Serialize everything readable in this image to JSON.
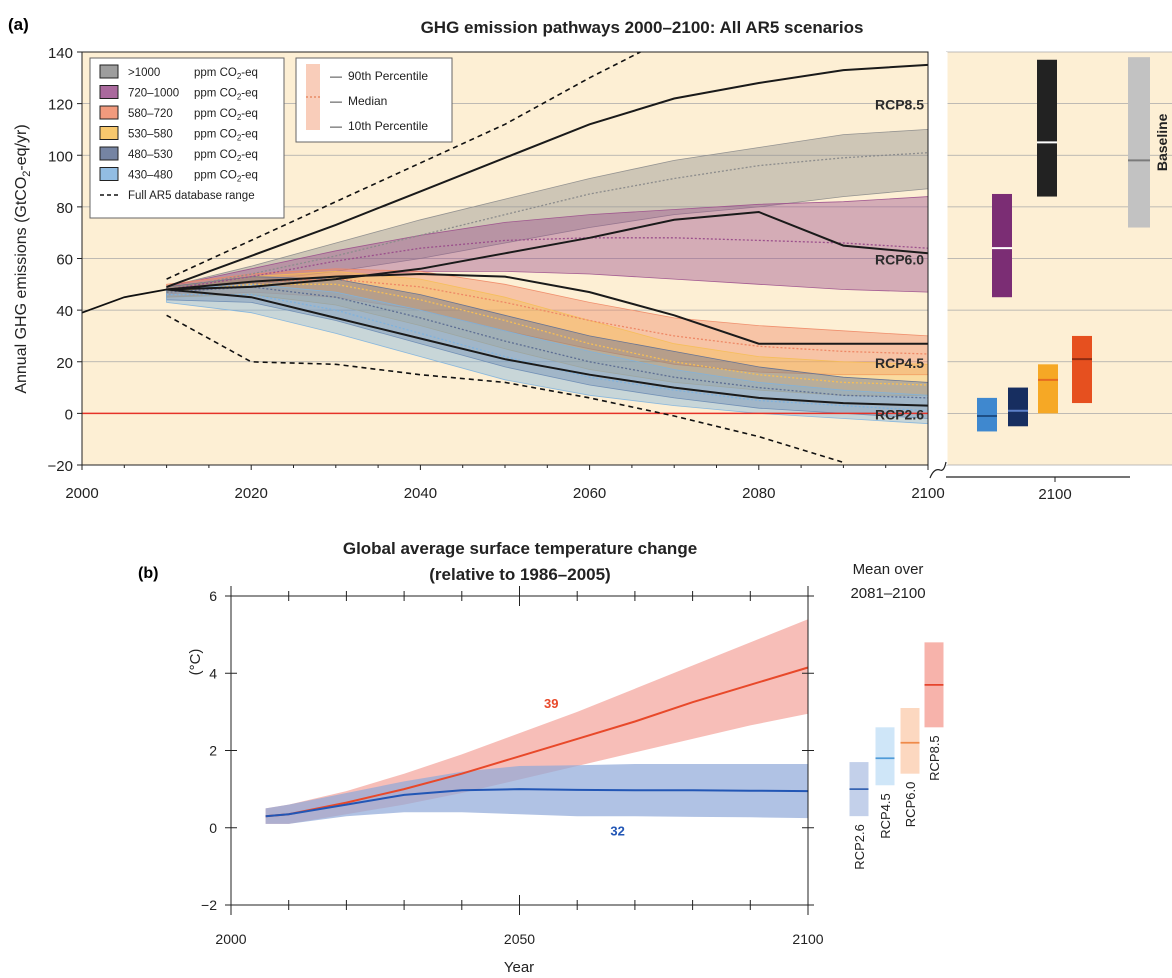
{
  "chart_data": [
    {
      "panel_label": "(a)",
      "type": "area",
      "title": "GHG emission pathways 2000–2100: All AR5 scenarios",
      "ylabel": "Annual GHG emissions (GtCO",
      "ylabel_sub": "2",
      "ylabel_end": "-eq/yr)",
      "xlim": [
        2000,
        2100
      ],
      "ylim": [
        -20,
        140
      ],
      "x_ticks": [
        2000,
        2020,
        2040,
        2060,
        2080,
        2100
      ],
      "y_ticks": [
        -20,
        0,
        20,
        40,
        60,
        80,
        100,
        120,
        140
      ],
      "grid": true,
      "legend_position": "top-left",
      "legend": [
        {
          "range": ">1000",
          "unit": "ppm CO",
          "sub": "2",
          "unit_end": "-eq",
          "color": "#8c8c8c"
        },
        {
          "range": "720–1000",
          "unit": "ppm CO",
          "sub": "2",
          "unit_end": "-eq",
          "color": "#9b4f8c"
        },
        {
          "range": "580–720",
          "unit": "ppm CO",
          "sub": "2",
          "unit_end": "-eq",
          "color": "#ee8866"
        },
        {
          "range": "530–580",
          "unit": "ppm CO",
          "sub": "2",
          "unit_end": "-eq",
          "color": "#f6be55"
        },
        {
          "range": "480–530",
          "unit": "ppm CO",
          "sub": "2",
          "unit_end": "-eq",
          "color": "#5d6e93"
        },
        {
          "range": "430–480",
          "unit": "ppm CO",
          "sub": "2",
          "unit_end": "-eq",
          "color": "#7fb2de"
        },
        {
          "range": "Full AR5 database range",
          "unit": "",
          "sub": "",
          "unit_end": "",
          "color": "#111111",
          "dashed": true
        }
      ],
      "percentile_legend": [
        "90th Percentile",
        "Median",
        "10th Percentile"
      ],
      "rcp_labels": [
        {
          "name": "RCP8.5",
          "y": 120
        },
        {
          "name": "RCP6.0",
          "y": 60
        },
        {
          "name": "RCP4.5",
          "y": 20
        },
        {
          "name": "RCP2.6",
          "y": 0
        }
      ],
      "zero_line_color": "#e63228",
      "background": "#fdefd4",
      "series": [
        {
          "name": ">1000",
          "color": "#8c8c8c",
          "x": [
            2010,
            2020,
            2030,
            2040,
            2050,
            2060,
            2070,
            2080,
            2090,
            2100
          ],
          "p90": [
            49,
            57,
            66,
            75,
            83,
            91,
            98,
            103,
            108,
            110
          ],
          "median": [
            48,
            54,
            61,
            69,
            77,
            85,
            91,
            96,
            99,
            101
          ],
          "p10": [
            47,
            51,
            55,
            60,
            66,
            72,
            77,
            80,
            84,
            87
          ]
        },
        {
          "name": "720–1000",
          "color": "#9b4f8c",
          "x": [
            2010,
            2020,
            2030,
            2040,
            2050,
            2060,
            2070,
            2080,
            2090,
            2100
          ],
          "p90": [
            49,
            56,
            63,
            69,
            74,
            77,
            79,
            81,
            82,
            84
          ],
          "median": [
            48,
            53,
            59,
            64,
            67,
            68,
            68,
            67,
            66,
            64
          ],
          "p10": [
            46,
            50,
            53,
            55,
            55,
            54,
            52,
            50,
            48,
            47
          ]
        },
        {
          "name": "580–720",
          "color": "#ee8866",
          "x": [
            2010,
            2020,
            2030,
            2040,
            2050,
            2060,
            2070,
            2080,
            2090,
            2100
          ],
          "p90": [
            50,
            54,
            56,
            55,
            50,
            43,
            37,
            34,
            32,
            30
          ],
          "median": [
            48,
            51,
            52,
            49,
            43,
            36,
            30,
            26,
            24,
            23
          ],
          "p10": [
            45,
            47,
            45,
            40,
            32,
            25,
            19,
            16,
            15,
            15
          ]
        },
        {
          "name": "530–580",
          "color": "#f6be55",
          "x": [
            2010,
            2020,
            2030,
            2040,
            2050,
            2060,
            2070,
            2080,
            2090,
            2100
          ],
          "p90": [
            49,
            53,
            55,
            52,
            45,
            36,
            27,
            22,
            20,
            19
          ],
          "median": [
            47,
            50,
            50,
            44,
            36,
            27,
            20,
            15,
            12,
            11
          ],
          "p10": [
            45,
            46,
            42,
            34,
            25,
            17,
            12,
            9,
            7,
            7
          ]
        },
        {
          "name": "480–530",
          "color": "#5d6e93",
          "x": [
            2010,
            2020,
            2030,
            2040,
            2050,
            2060,
            2070,
            2080,
            2090,
            2100
          ],
          "p90": [
            49,
            53,
            52,
            46,
            38,
            30,
            24,
            18,
            14,
            12
          ],
          "median": [
            47,
            49,
            45,
            37,
            28,
            20,
            14,
            10,
            7,
            6
          ],
          "p10": [
            44,
            43,
            36,
            27,
            18,
            11,
            6,
            2,
            0,
            -2
          ]
        },
        {
          "name": "430–480",
          "color": "#7fb2de",
          "x": [
            2010,
            2020,
            2030,
            2040,
            2050,
            2060,
            2070,
            2080,
            2090,
            2100
          ],
          "p90": [
            48,
            50,
            47,
            40,
            32,
            24,
            17,
            12,
            9,
            7
          ],
          "median": [
            46,
            46,
            40,
            31,
            22,
            14,
            9,
            5,
            3,
            1
          ],
          "p10": [
            43,
            39,
            31,
            22,
            13,
            7,
            3,
            0,
            -2,
            -4
          ]
        }
      ],
      "historical": {
        "x": [
          2000,
          2005,
          2010
        ],
        "y": [
          39,
          45,
          48
        ]
      },
      "full_range_upper": {
        "x": [
          2010,
          2020,
          2030,
          2040,
          2050,
          2060,
          2066
        ],
        "y": [
          52,
          67,
          82,
          97,
          112,
          130,
          140
        ]
      },
      "full_range_lower": {
        "x": [
          2010,
          2020,
          2030,
          2040,
          2050,
          2060,
          2070,
          2080,
          2090
        ],
        "y": [
          38,
          20,
          19,
          15,
          12,
          6,
          -1,
          -9,
          -19
        ]
      },
      "rcp_lines": [
        {
          "name": "RCP8.5",
          "x": [
            2010,
            2020,
            2030,
            2040,
            2050,
            2060,
            2070,
            2080,
            2090,
            2100
          ],
          "y": [
            49,
            61,
            73,
            86,
            99,
            112,
            122,
            128,
            133,
            135
          ]
        },
        {
          "name": "RCP6.0",
          "x": [
            2010,
            2020,
            2030,
            2040,
            2050,
            2060,
            2070,
            2080,
            2090,
            2100
          ],
          "y": [
            48,
            49,
            52,
            56,
            62,
            68,
            75,
            78,
            65,
            62
          ]
        },
        {
          "name": "RCP4.5",
          "x": [
            2010,
            2020,
            2030,
            2040,
            2050,
            2060,
            2070,
            2080,
            2090,
            2100
          ],
          "y": [
            48,
            51,
            53,
            54,
            53,
            47,
            38,
            27,
            27,
            27
          ]
        },
        {
          "name": "RCP2.6",
          "x": [
            2010,
            2020,
            2030,
            2040,
            2050,
            2060,
            2070,
            2080,
            2090,
            2100
          ],
          "y": [
            48,
            45,
            37,
            29,
            21,
            15,
            10,
            6,
            4,
            3
          ]
        }
      ],
      "side_panel": {
        "x_label": "2100",
        "baseline_label": "Baseline",
        "baseline": {
          "low": 72,
          "high": 138,
          "median": 98,
          "color": "#c2c2c2",
          "median_color": "#7b7b7b"
        },
        "bars": [
          {
            "name": "430–480",
            "low": -7,
            "high": 6,
            "median": -1,
            "color": "#3f88cf",
            "median_color": "#1e4f86"
          },
          {
            "name": "480–530",
            "low": -5,
            "high": 10,
            "median": 1,
            "color": "#172e60",
            "median_color": "#5d80c9"
          },
          {
            "name": "530–580",
            "low": 0,
            "high": 19,
            "median": 13,
            "color": "#f6a825",
            "median_color": "#e76b20"
          },
          {
            "name": "580–720",
            "low": 4,
            "high": 30,
            "median": 21,
            "color": "#e6501f",
            "median_color": "#8f2b12"
          },
          {
            "name": "720–1000",
            "low": 45,
            "high": 85,
            "median": 64,
            "color": "#7b2d74",
            "median_color": "#ffffff"
          },
          {
            "name": ">1000",
            "low": 84,
            "high": 137,
            "median": 105,
            "color": "#222222",
            "median_color": "#ffffff"
          }
        ]
      }
    },
    {
      "panel_label": "(b)",
      "type": "line",
      "title_line1": "Global average surface temperature change",
      "title_line2": "(relative to 1986–2005)",
      "xlabel": "Year",
      "ylabel": "(°C)",
      "xlim": [
        2000,
        2100
      ],
      "ylim": [
        -2,
        6
      ],
      "x_ticks": [
        2000,
        2050,
        2100
      ],
      "y_ticks": [
        -2,
        0,
        2,
        4,
        6
      ],
      "grid": false,
      "series": [
        {
          "name": "RCP8.5",
          "color": "#e8492a",
          "band_color": "#f4a39a",
          "count_label": "39",
          "x": [
            2006,
            2010,
            2020,
            2030,
            2040,
            2050,
            2060,
            2070,
            2080,
            2090,
            2100
          ],
          "y": [
            0.3,
            0.35,
            0.65,
            1.0,
            1.4,
            1.85,
            2.3,
            2.75,
            3.25,
            3.7,
            4.15
          ],
          "lower": [
            0.1,
            0.1,
            0.35,
            0.6,
            0.9,
            1.25,
            1.6,
            1.95,
            2.3,
            2.65,
            2.95
          ],
          "upper": [
            0.5,
            0.6,
            0.95,
            1.4,
            1.9,
            2.45,
            3.0,
            3.6,
            4.2,
            4.8,
            5.4
          ]
        },
        {
          "name": "RCP2.6",
          "color": "#2256b5",
          "band_color": "#8fa8d8",
          "count_label": "32",
          "x": [
            2006,
            2010,
            2020,
            2030,
            2040,
            2050,
            2060,
            2070,
            2080,
            2090,
            2100
          ],
          "y": [
            0.3,
            0.35,
            0.6,
            0.85,
            0.97,
            1.0,
            0.98,
            0.97,
            0.97,
            0.96,
            0.95
          ],
          "lower": [
            0.1,
            0.1,
            0.3,
            0.4,
            0.4,
            0.35,
            0.3,
            0.3,
            0.28,
            0.27,
            0.25
          ],
          "upper": [
            0.5,
            0.6,
            0.9,
            1.2,
            1.45,
            1.6,
            1.62,
            1.65,
            1.65,
            1.65,
            1.65
          ]
        }
      ],
      "side_panel": {
        "title_line1": "Mean over",
        "title_line2": "2081–2100",
        "bars": [
          {
            "name": "RCP2.6",
            "low": 0.3,
            "high": 1.7,
            "mean": 1.0,
            "color": "#c3d0ea",
            "mean_color": "#3764b2"
          },
          {
            "name": "RCP4.5",
            "low": 1.1,
            "high": 2.6,
            "mean": 1.8,
            "color": "#cfe6f8",
            "mean_color": "#4f9bd8"
          },
          {
            "name": "RCP6.0",
            "low": 1.4,
            "high": 3.1,
            "mean": 2.2,
            "color": "#fcd8c0",
            "mean_color": "#ef8a4a"
          },
          {
            "name": "RCP8.5",
            "low": 2.6,
            "high": 4.8,
            "mean": 3.7,
            "color": "#f7b3ab",
            "mean_color": "#e6452c"
          }
        ]
      }
    }
  ]
}
